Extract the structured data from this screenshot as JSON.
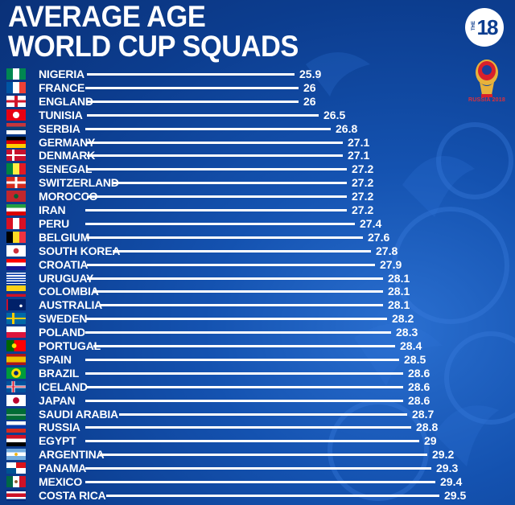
{
  "header": {
    "title_line1": "AVERAGE AGE",
    "title_line2": "WORLD CUP SQUADS"
  },
  "brand": {
    "channel_logo_prefix": "THE",
    "channel_logo_number": "18",
    "tournament_caption": "RUSSIA 2018"
  },
  "colors": {
    "background_primary": "#1452b0",
    "background_dark": "#0a3178",
    "text": "#ffffff",
    "bar": "#ffffff",
    "accent_red": "#e0303a"
  },
  "chart_data": {
    "type": "bar",
    "orientation": "horizontal",
    "title": "AVERAGE AGE WORLD CUP SQUADS",
    "xlabel": "",
    "ylabel": "",
    "grid": false,
    "categories": [
      "NIGERIA",
      "FRANCE",
      "ENGLAND",
      "TUNISIA",
      "SERBIA",
      "GERMANY",
      "DENMARK",
      "SENEGAL",
      "SWITZERLAND",
      "MOROCCO",
      "IRAN",
      "PERU",
      "BELGIUM",
      "SOUTH KOREA",
      "CROATIA",
      "URUGUAY",
      "COLOMBIA",
      "AUSTRALIA",
      "SWEDEN",
      "POLAND",
      "PORTUGAL",
      "SPAIN",
      "BRAZIL",
      "ICELAND",
      "JAPAN",
      "SAUDI ARABIA",
      "RUSSIA",
      "EGYPT",
      "ARGENTINA",
      "PANAMA",
      "MEXICO",
      "COSTA RICA"
    ],
    "values": [
      25.9,
      26,
      26,
      26.5,
      26.8,
      27.1,
      27.1,
      27.2,
      27.2,
      27.2,
      27.2,
      27.4,
      27.6,
      27.8,
      27.9,
      28.1,
      28.1,
      28.1,
      28.2,
      28.3,
      28.4,
      28.5,
      28.6,
      28.6,
      28.6,
      28.7,
      28.8,
      29,
      29.2,
      29.3,
      29.4,
      29.5
    ],
    "value_labels": [
      "25.9",
      "26",
      "26",
      "26.5",
      "26.8",
      "27.1",
      "27.1",
      "27.2",
      "27.2",
      "27.2",
      "27.2",
      "27.4",
      "27.6",
      "27.8",
      "27.9",
      "28.1",
      "28.1",
      "28.1",
      "28.2",
      "28.3",
      "28.4",
      "28.5",
      "28.6",
      "28.6",
      "28.6",
      "28.7",
      "28.8",
      "29",
      "29.2",
      "29.3",
      "29.4",
      "29.5"
    ],
    "flags": [
      "nigeria-flag-icon",
      "france-flag-icon",
      "england-flag-icon",
      "tunisia-flag-icon",
      "serbia-flag-icon",
      "germany-flag-icon",
      "denmark-flag-icon",
      "senegal-flag-icon",
      "switzerland-flag-icon",
      "morocco-flag-icon",
      "iran-flag-icon",
      "peru-flag-icon",
      "belgium-flag-icon",
      "south-korea-flag-icon",
      "croatia-flag-icon",
      "uruguay-flag-icon",
      "colombia-flag-icon",
      "australia-flag-icon",
      "sweden-flag-icon",
      "poland-flag-icon",
      "portugal-flag-icon",
      "spain-flag-icon",
      "brazil-flag-icon",
      "iceland-flag-icon",
      "japan-flag-icon",
      "saudi-arabia-flag-icon",
      "russia-flag-icon",
      "egypt-flag-icon",
      "argentina-flag-icon",
      "panama-flag-icon",
      "mexico-flag-icon",
      "costa-rica-flag-icon"
    ]
  }
}
